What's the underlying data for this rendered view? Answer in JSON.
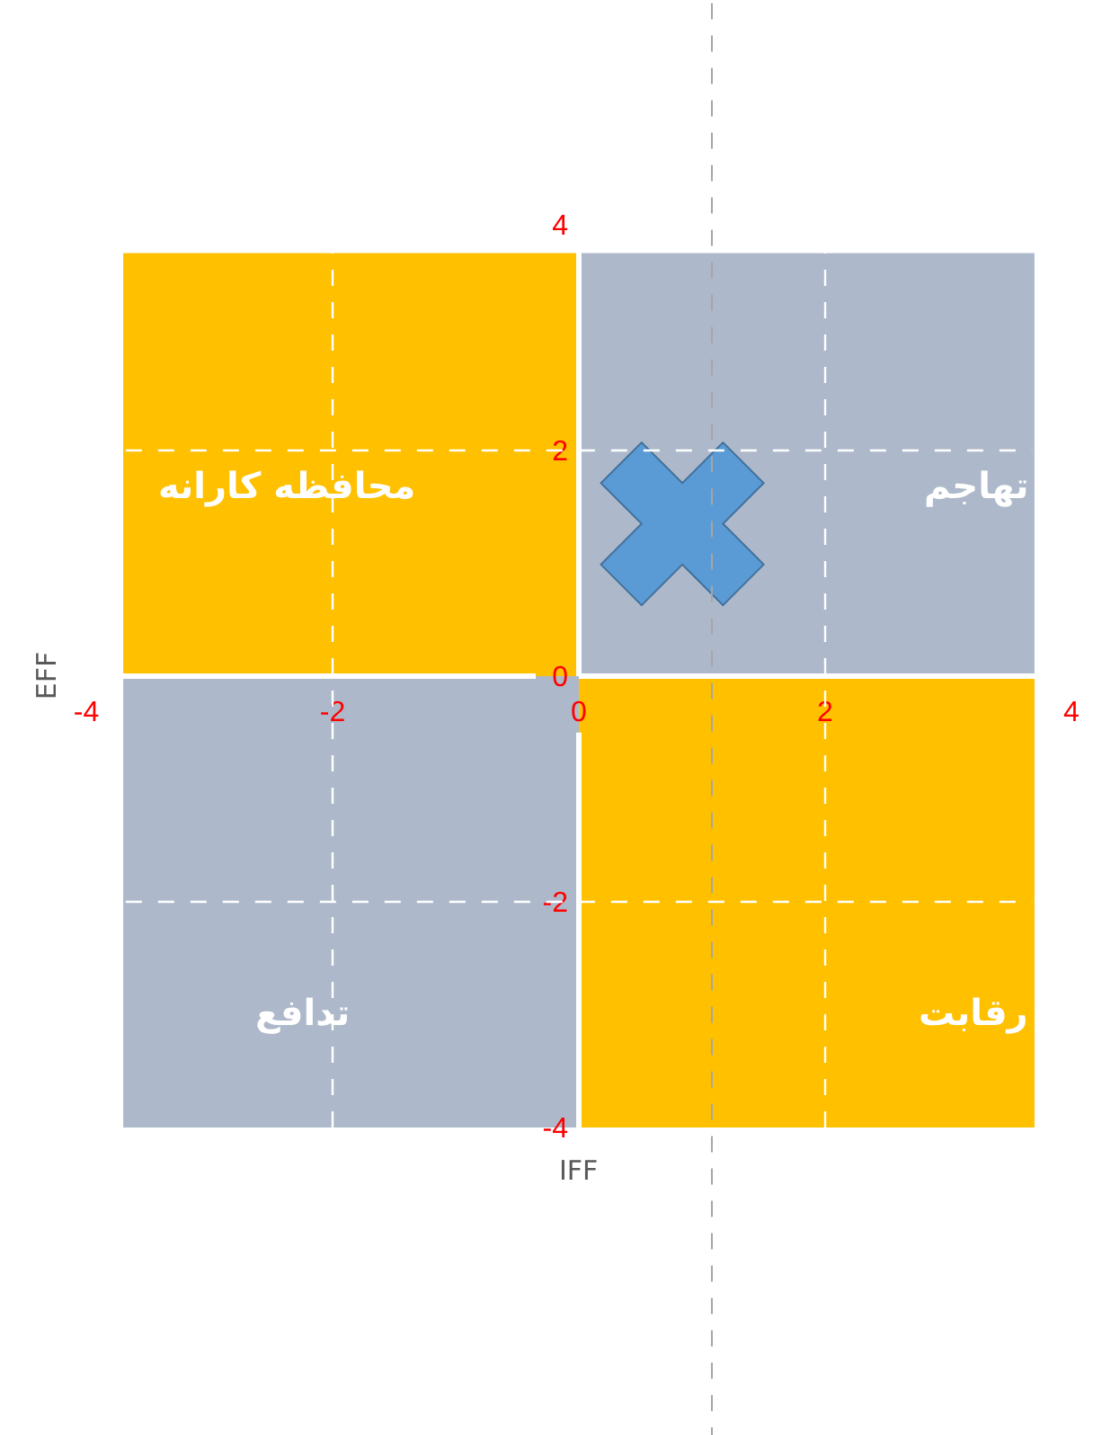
{
  "chart_data": {
    "type": "scatter",
    "xlabel": "IFF",
    "ylabel": "EFF",
    "xlim": [
      -4,
      4
    ],
    "ylim": [
      -4,
      4
    ],
    "xticks": [
      -4,
      -2,
      0,
      2,
      4
    ],
    "yticks": [
      -4,
      -2,
      0,
      2,
      4
    ],
    "grid": true,
    "marker": "cross",
    "series": [
      {
        "type": "bar",
        "colors": [
          "#ffc000",
          "#adb9ca"
        ],
        "x": [
          -1.85,
          1.85
        ],
        "base": [
          0,
          0
        ],
        "values": [
          3.75,
          3.75
        ]
      },
      {
        "type": "bar",
        "colors": [
          "#adb9ca",
          "#ffc000"
        ],
        "x": [
          -1.85,
          1.85
        ],
        "base": [
          -4,
          -4
        ],
        "values": [
          4,
          4
        ]
      },
      {
        "color": "#5b9bd5",
        "x": [
          0.84
        ],
        "values": [
          1.35
        ]
      }
    ],
    "ref_lines": [
      {
        "axis": "x",
        "value": 1.08,
        "color": "#a6a6a6",
        "line_style": "dashed"
      }
    ],
    "annotations": [
      "محافظه کارانه",
      "تهاجم",
      "تدافع",
      "رقابت"
    ]
  }
}
